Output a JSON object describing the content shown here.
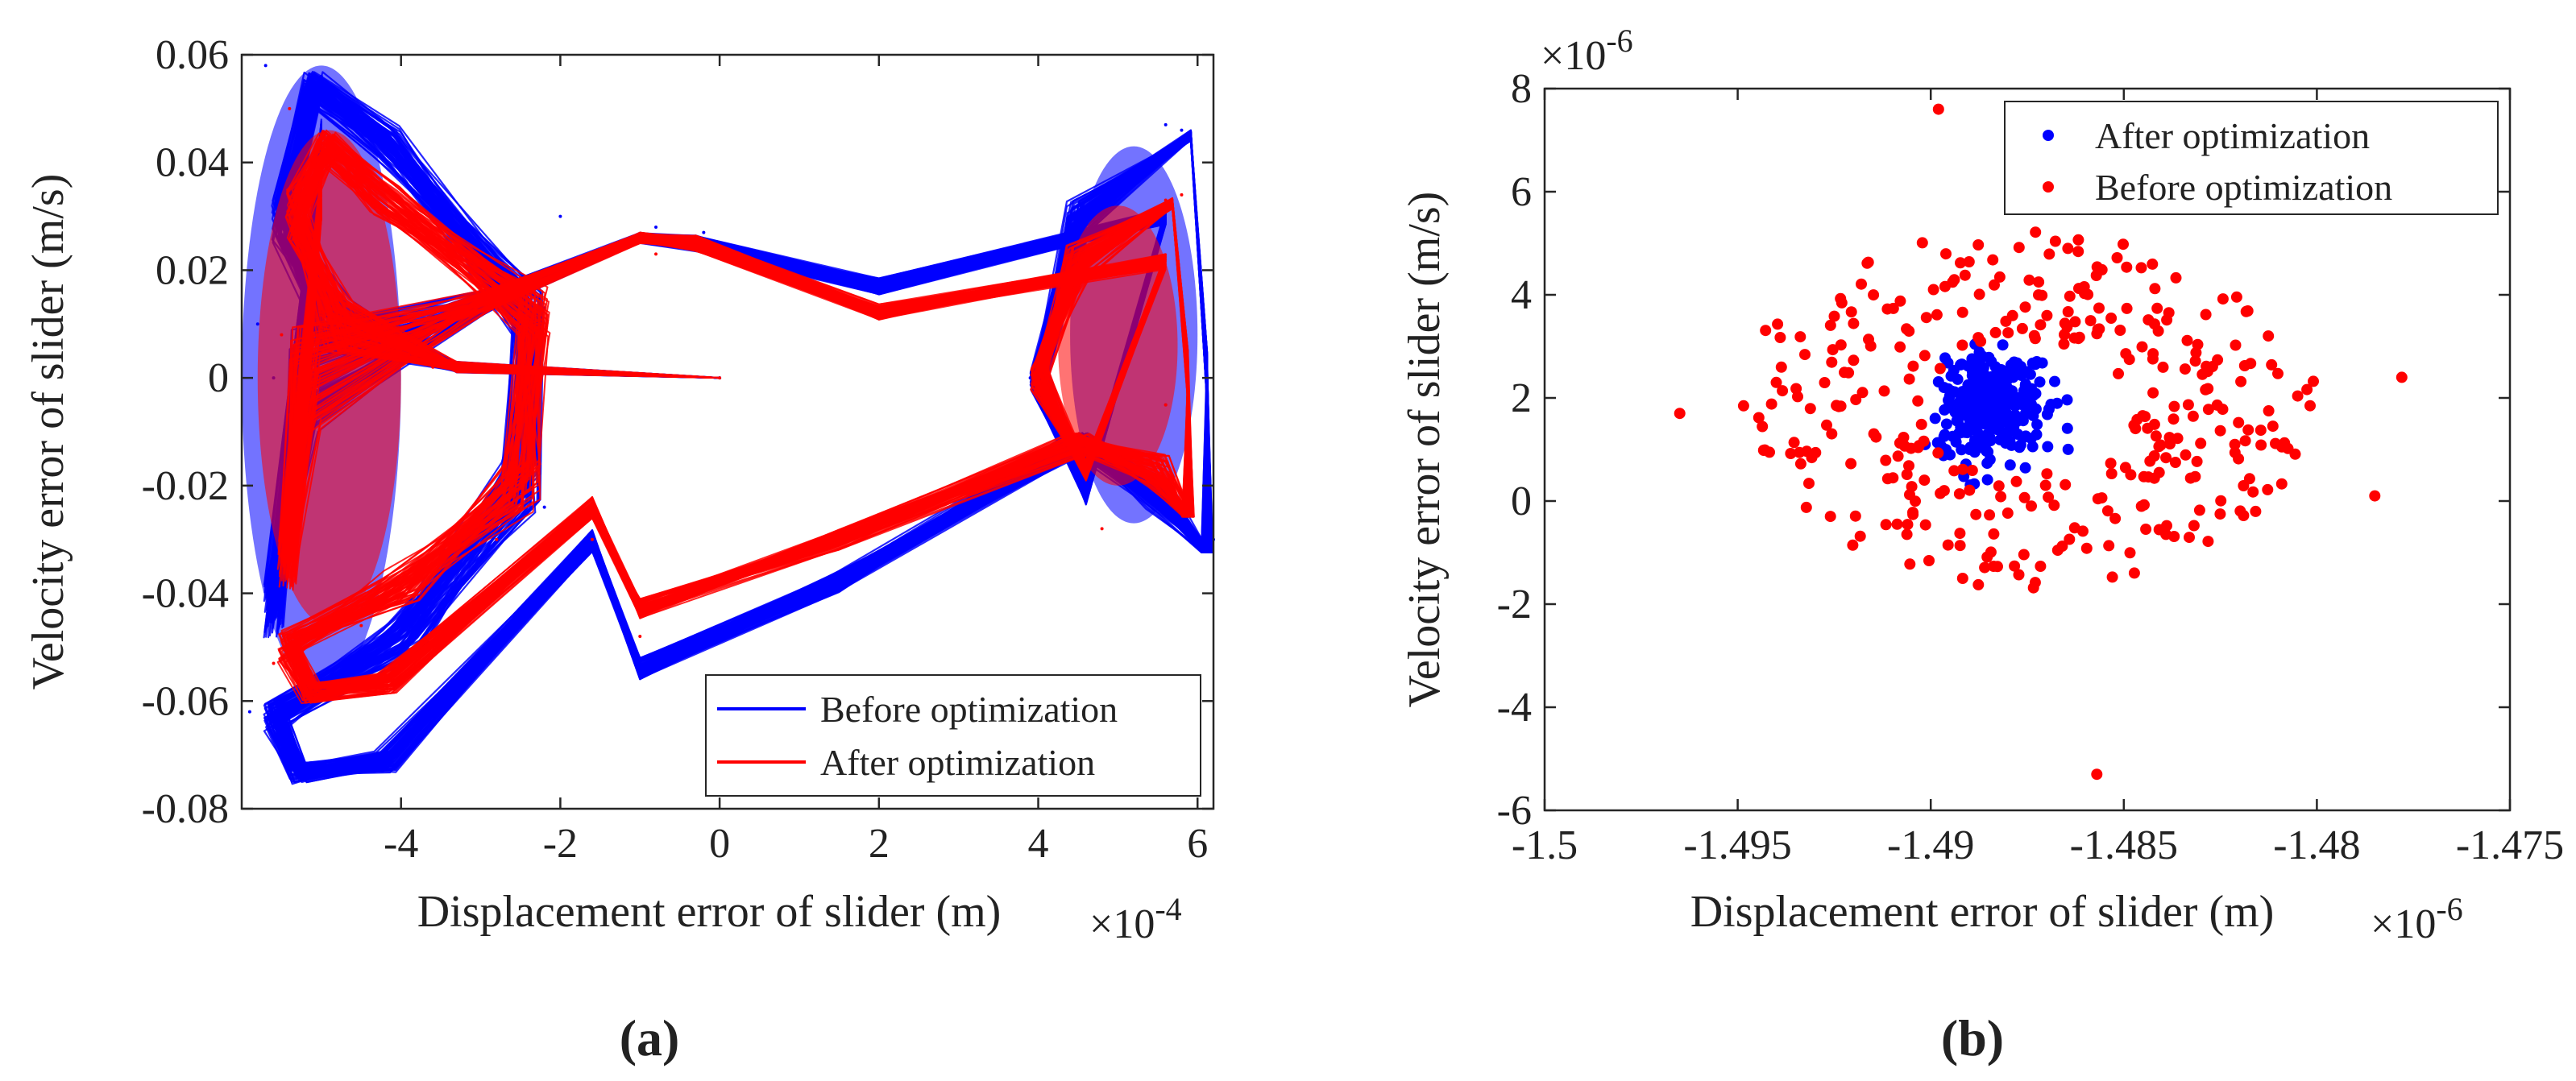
{
  "chart_data": [
    {
      "panel_label": "(a)",
      "type": "line",
      "title": "",
      "xlabel": "Displacement error of slider (m)",
      "ylabel": "Velocity error of slider (m/s)",
      "x_multiplier": {
        "base": "×10",
        "exp": "-4"
      },
      "xlim": [
        -6,
        6.2
      ],
      "ylim": [
        -0.08,
        0.06
      ],
      "x_ticks": [
        -4,
        -2,
        0,
        2,
        4,
        6
      ],
      "x_tick_labels": [
        "-4",
        "-2",
        "0",
        "2",
        "4",
        "6"
      ],
      "y_ticks": [
        0.06,
        0.04,
        0.02,
        0,
        -0.02,
        -0.04,
        -0.06,
        -0.08
      ],
      "y_tick_labels": [
        "0.06",
        "0.04",
        "0.02",
        "0",
        "-0.02",
        "-0.04",
        "-0.06",
        "-0.08"
      ],
      "grid": false,
      "legend_position": "bottom-right",
      "series": [
        {
          "name": "Before optimization",
          "color": "#0000ff",
          "points": [
            [
              0,
              0
            ],
            [
              -3.6,
              0.003
            ],
            [
              -5.8,
              0.01
            ],
            [
              -5.7,
              0.058
            ],
            [
              -5.0,
              0.056
            ],
            [
              -2.2,
              0.013
            ],
            [
              -5.9,
              -0.062
            ],
            [
              -4.3,
              -0.072
            ],
            [
              -1.6,
              -0.026
            ],
            [
              -1.0,
              -0.053
            ],
            [
              5.6,
              -0.005
            ],
            [
              5.8,
              0.046
            ],
            [
              -0.8,
              0.028
            ],
            [
              -2.2,
              -0.024
            ],
            [
              -5.6,
              0.0
            ],
            [
              -2.0,
              0.03
            ],
            [
              6.2,
              -0.03
            ],
            [
              3.9,
              0.0
            ],
            [
              5.6,
              0.047
            ],
            [
              -0.2,
              0.027
            ]
          ]
        },
        {
          "name": "After optimization",
          "color": "#ff0000",
          "points": [
            [
              0,
              0
            ],
            [
              -3.6,
              0.002
            ],
            [
              -5.5,
              0.008
            ],
            [
              -5.4,
              0.05
            ],
            [
              -2.6,
              0.012
            ],
            [
              -5.6,
              -0.053
            ],
            [
              -1.6,
              -0.03
            ],
            [
              -1.0,
              -0.048
            ],
            [
              5.6,
              -0.005
            ],
            [
              5.8,
              0.034
            ],
            [
              -0.8,
              0.023
            ],
            [
              -2.8,
              -0.03
            ],
            [
              -4.5,
              -0.046
            ],
            [
              4.8,
              -0.028
            ],
            [
              5.6,
              0.033
            ]
          ]
        }
      ]
    },
    {
      "panel_label": "(b)",
      "type": "scatter",
      "title": "",
      "xlabel": "Displacement error of slider (m)",
      "ylabel": "Velocity error of slider (m/s)",
      "x_multiplier": {
        "base": "×10",
        "exp": "-6"
      },
      "y_multiplier": {
        "base": "×10",
        "exp": "-6"
      },
      "xlim": [
        -1.5,
        -1.475
      ],
      "ylim": [
        -6,
        8
      ],
      "x_ticks": [
        -1.5,
        -1.495,
        -1.49,
        -1.485,
        -1.48,
        -1.475
      ],
      "x_tick_labels": [
        "-1.5",
        "-1.495",
        "-1.49",
        "-1.485",
        "-1.48",
        "-1.475"
      ],
      "y_ticks": [
        8,
        6,
        4,
        2,
        0,
        -2,
        -4,
        -6
      ],
      "y_tick_labels": [
        "8",
        "6",
        "4",
        "2",
        "0",
        "-2",
        "-4",
        "-6"
      ],
      "grid": false,
      "legend_position": "top-right",
      "series": [
        {
          "name": "After optimization",
          "color": "#0000ff",
          "center": [
            -1.4885,
            1.8
          ],
          "spread": [
            0.0012,
            0.7
          ],
          "count": 300,
          "seed": 7,
          "points": []
        },
        {
          "name": "Before optimization",
          "color": "#ff0000",
          "center": [
            -1.4875,
            1.8
          ],
          "spread": [
            0.0125,
            5.8
          ],
          "count": 340,
          "seed": 13,
          "points": [
            [
              -1.4965,
              1.7
            ],
            [
              -1.4898,
              7.6
            ],
            [
              -1.4778,
              2.4
            ],
            [
              -1.4857,
              -5.3
            ],
            [
              -1.4785,
              0.1
            ]
          ]
        }
      ]
    }
  ]
}
